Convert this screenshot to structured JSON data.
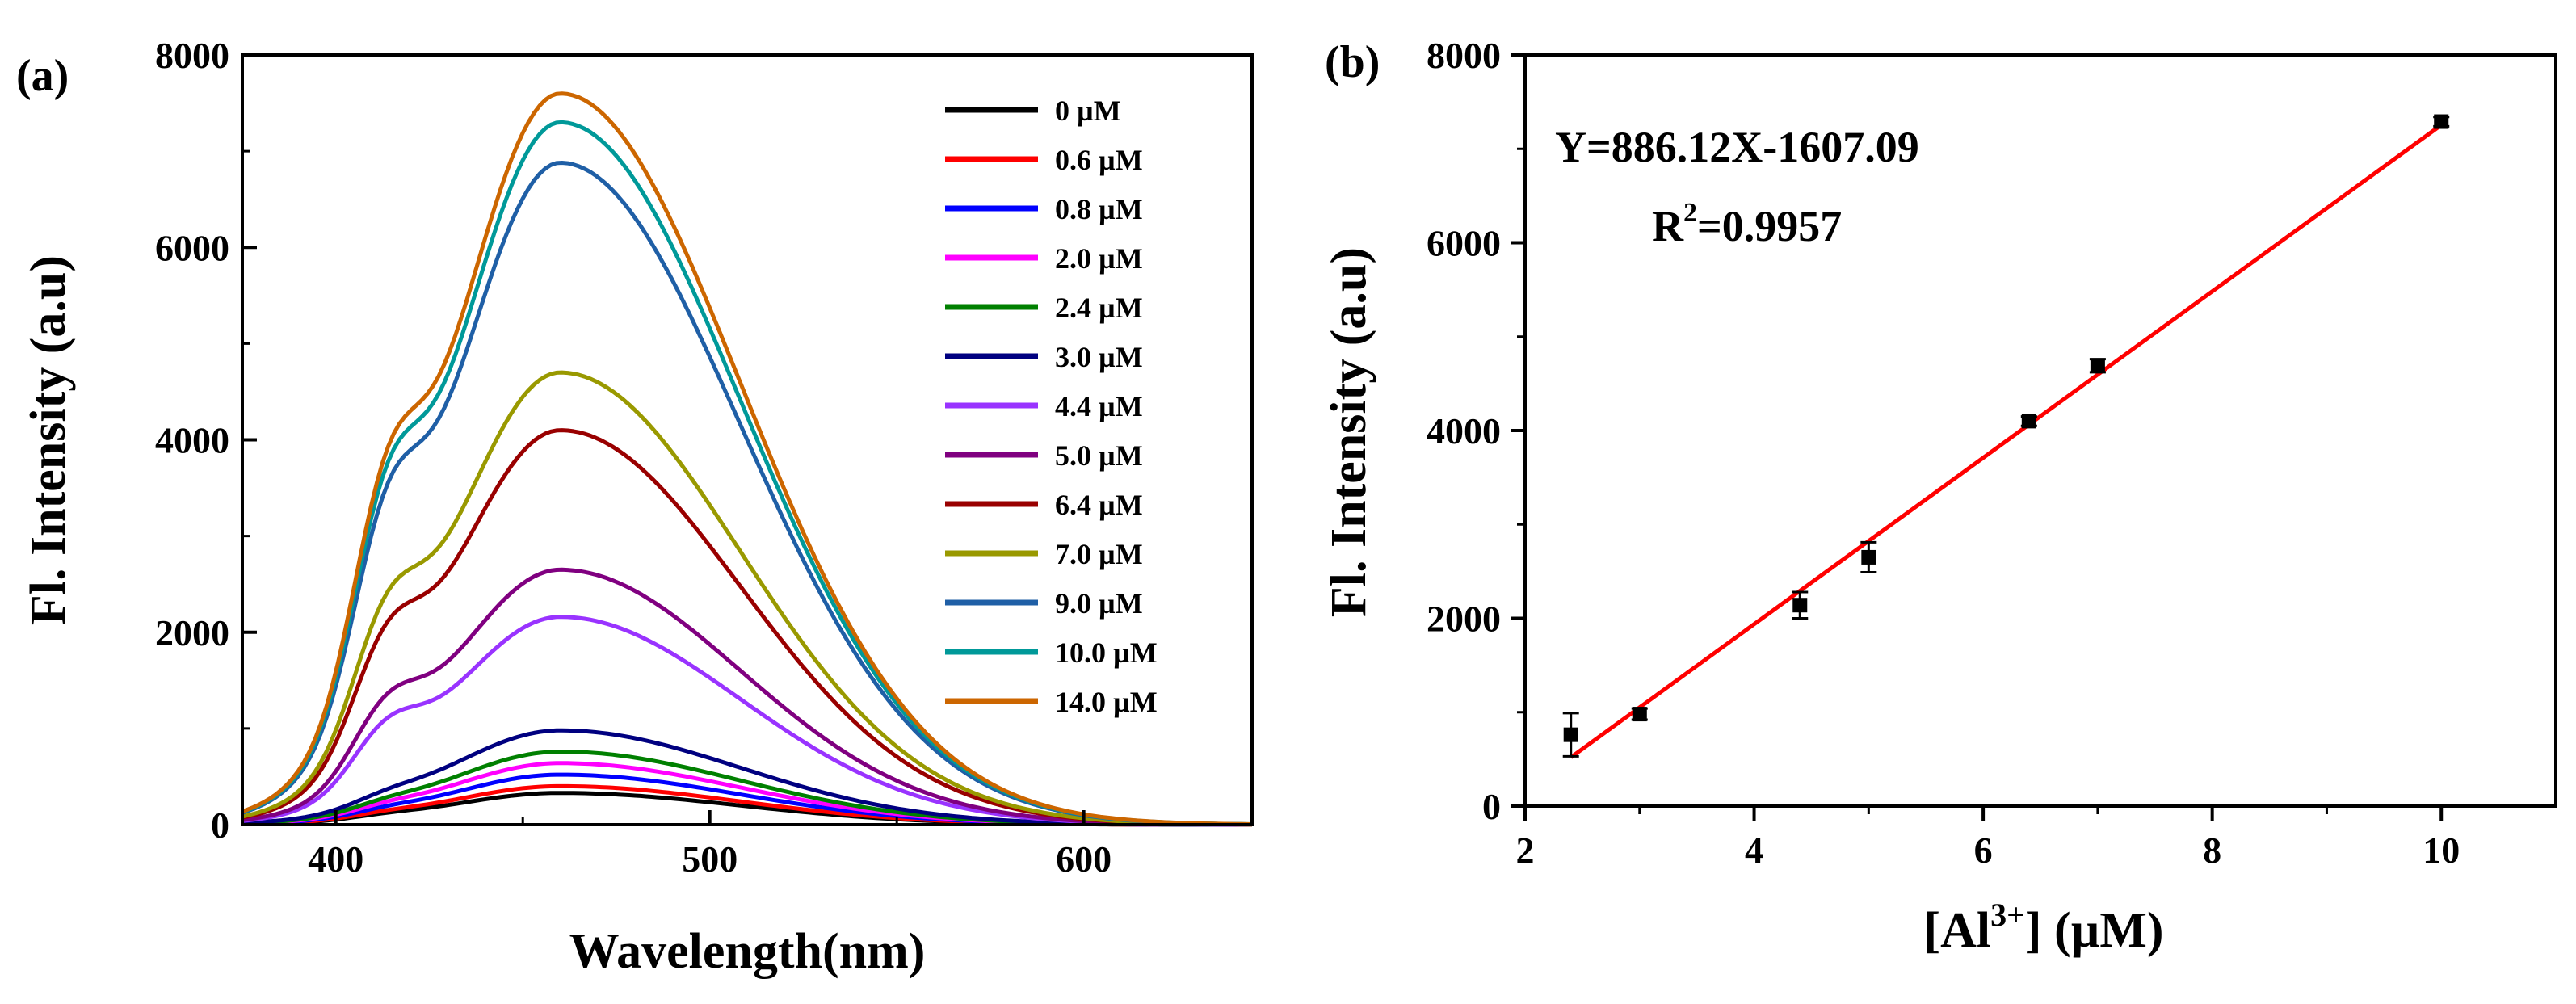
{
  "chart_data": [
    {
      "type": "line",
      "panel_label": "(a)",
      "xlabel": "Wavelength(nm)",
      "ylabel": "Fl. Intensity (a.u)",
      "xlim": [
        375,
        645
      ],
      "ylim": [
        0,
        8000
      ],
      "xticks": [
        400,
        500,
        600
      ],
      "yticks": [
        0,
        2000,
        4000,
        6000,
        8000
      ],
      "xtick_labels": [
        "400",
        "500",
        "600"
      ],
      "ytick_labels": [
        "0",
        "2000",
        "4000",
        "6000",
        "8000"
      ],
      "legend_position": "top-right",
      "series": [
        {
          "name": "0  µM",
          "color": "#000000",
          "peak": 330
        },
        {
          "name": "0.6 µM",
          "color": "#ff0000",
          "peak": 400
        },
        {
          "name": "0.8 µM",
          "color": "#0000ff",
          "peak": 520
        },
        {
          "name": "2.0 µM",
          "color": "#ff00ff",
          "peak": 640
        },
        {
          "name": "2.4 µM",
          "color": "#008000",
          "peak": 760
        },
        {
          "name": "3.0 µM",
          "color": "#000080",
          "peak": 980
        },
        {
          "name": "4.4 µM",
          "color": "#9933ff",
          "peak": 2160
        },
        {
          "name": "5.0 µM",
          "color": "#800080",
          "peak": 2650
        },
        {
          "name": "6.4 µM",
          "color": "#990000",
          "peak": 4100
        },
        {
          "name": "7.0 µM",
          "color": "#999900",
          "peak": 4700
        },
        {
          "name": "9.0 µM",
          "color": "#1f5fa6",
          "peak": 6880
        },
        {
          "name": "10.0 µM",
          "color": "#009999",
          "peak": 7300
        },
        {
          "name": "14.0 µM",
          "color": "#cc6600",
          "peak": 7600
        }
      ]
    },
    {
      "type": "scatter",
      "panel_label": "(b)",
      "xlabel": "[Al³⁺] (µM)",
      "xlabel_parts": {
        "pre": "[Al",
        "sup": "3+",
        "post": "] (µM)"
      },
      "ylabel": "Fl. Intensity (a.u)",
      "xlim": [
        2,
        11
      ],
      "ylim": [
        0,
        8000
      ],
      "xticks": [
        2,
        4,
        6,
        8,
        10
      ],
      "yticks": [
        0,
        2000,
        4000,
        6000,
        8000
      ],
      "xtick_labels": [
        "2",
        "4",
        "6",
        "8",
        "10"
      ],
      "ytick_labels": [
        "0",
        "2000",
        "4000",
        "6000",
        "8000"
      ],
      "points": [
        {
          "x": 2.4,
          "y": 760,
          "err": 230
        },
        {
          "x": 3.0,
          "y": 980,
          "err": 60
        },
        {
          "x": 4.4,
          "y": 2140,
          "err": 140
        },
        {
          "x": 5.0,
          "y": 2650,
          "err": 160
        },
        {
          "x": 6.4,
          "y": 4100,
          "err": 50
        },
        {
          "x": 7.0,
          "y": 4690,
          "err": 70
        },
        {
          "x": 10.0,
          "y": 7290,
          "err": 50
        }
      ],
      "fit": {
        "slope": 886.12,
        "intercept": -1607.09,
        "x_range": [
          2.4,
          10.0
        ],
        "color": "#ff0000"
      },
      "equation": "Y=886.12X-1607.09",
      "r2_parts": {
        "pre": "R",
        "sup": "2",
        "post": "=0.9957"
      }
    }
  ]
}
